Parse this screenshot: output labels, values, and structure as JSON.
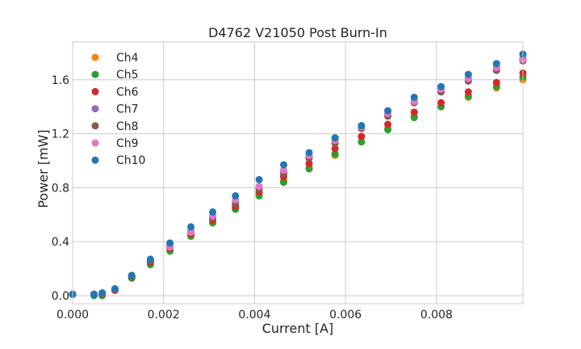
{
  "chart_data": {
    "type": "scatter",
    "title": "D4762 V21050 Post Burn-In",
    "xlabel": "Current [A]",
    "ylabel": "Power [mW]",
    "xlim": [
      0,
      0.0099
    ],
    "ylim": [
      -0.06,
      1.88
    ],
    "xticks": [
      0.0,
      0.002,
      0.004,
      0.006,
      0.008
    ],
    "xtick_labels": [
      "0.000",
      "0.002",
      "0.004",
      "0.006",
      "0.008"
    ],
    "yticks": [
      0.0,
      0.4,
      0.8,
      1.2,
      1.6
    ],
    "ytick_labels": [
      "0.0",
      "0.4",
      "0.8",
      "1.2",
      "1.6"
    ],
    "grid": true,
    "legend_position": "upper-left",
    "x": [
      0.0,
      0.00047,
      0.00065,
      0.00093,
      0.0013,
      0.00171,
      0.00214,
      0.0026,
      0.00308,
      0.00358,
      0.0041,
      0.00464,
      0.0052,
      0.00577,
      0.00635,
      0.00693,
      0.00751,
      0.0081,
      0.0087,
      0.00932,
      0.0099
    ],
    "series": [
      {
        "name": "Ch4",
        "color": "#ff7f0e",
        "values": [
          0.01,
          0.01,
          0.01,
          0.04,
          0.13,
          0.24,
          0.34,
          0.45,
          0.54,
          0.65,
          0.75,
          0.85,
          0.95,
          1.04,
          1.14,
          1.24,
          1.33,
          1.4,
          1.47,
          1.54,
          1.6
        ]
      },
      {
        "name": "Ch5",
        "color": "#2ca02c",
        "values": [
          0.01,
          0.0,
          0.0,
          0.04,
          0.13,
          0.23,
          0.33,
          0.44,
          0.54,
          0.64,
          0.74,
          0.84,
          0.94,
          1.05,
          1.14,
          1.23,
          1.32,
          1.4,
          1.48,
          1.55,
          1.62
        ]
      },
      {
        "name": "Ch6",
        "color": "#d62728",
        "values": [
          0.01,
          0.01,
          0.01,
          0.04,
          0.14,
          0.25,
          0.35,
          0.46,
          0.56,
          0.66,
          0.77,
          0.88,
          0.98,
          1.09,
          1.18,
          1.27,
          1.36,
          1.43,
          1.51,
          1.58,
          1.65
        ]
      },
      {
        "name": "Ch7",
        "color": "#9467bd",
        "values": [
          0.01,
          0.01,
          0.02,
          0.05,
          0.14,
          0.26,
          0.37,
          0.48,
          0.58,
          0.69,
          0.8,
          0.91,
          1.03,
          1.14,
          1.24,
          1.34,
          1.44,
          1.53,
          1.61,
          1.69,
          1.76
        ]
      },
      {
        "name": "Ch8",
        "color": "#8c564b",
        "values": [
          0.01,
          0.01,
          0.01,
          0.05,
          0.14,
          0.26,
          0.36,
          0.47,
          0.57,
          0.68,
          0.79,
          0.9,
          1.02,
          1.13,
          1.24,
          1.33,
          1.43,
          1.51,
          1.59,
          1.67,
          1.74
        ]
      },
      {
        "name": "Ch9",
        "color": "#e377c2",
        "values": [
          0.01,
          0.01,
          0.02,
          0.05,
          0.15,
          0.27,
          0.36,
          0.47,
          0.59,
          0.71,
          0.81,
          0.93,
          1.04,
          1.15,
          1.25,
          1.35,
          1.44,
          1.53,
          1.61,
          1.69,
          1.75
        ]
      },
      {
        "name": "Ch10",
        "color": "#1f77b4",
        "values": [
          0.01,
          0.01,
          0.02,
          0.05,
          0.15,
          0.27,
          0.39,
          0.51,
          0.62,
          0.74,
          0.86,
          0.97,
          1.06,
          1.17,
          1.26,
          1.37,
          1.47,
          1.55,
          1.64,
          1.72,
          1.79
        ]
      }
    ]
  }
}
